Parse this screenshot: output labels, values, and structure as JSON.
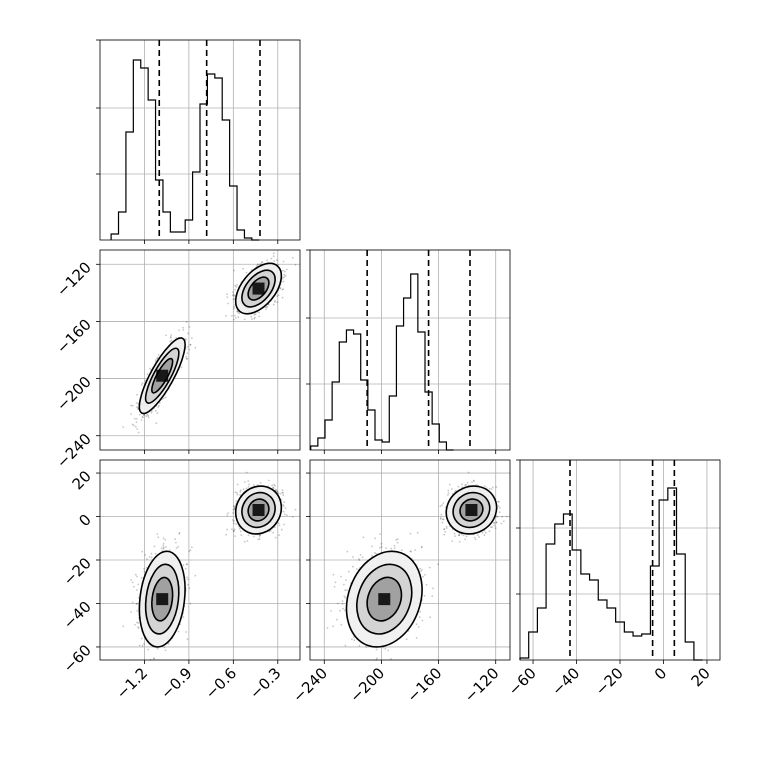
{
  "chart_data": {
    "type": "corner",
    "title": "",
    "dims": [
      {
        "name": "",
        "range": [
          -1.5,
          -0.15
        ],
        "ticks": [
          -1.2,
          -0.9,
          -0.6,
          -0.3
        ],
        "tick_labels": [
          "−1.2",
          "−0.9",
          "−0.6",
          "−0.3"
        ],
        "quantiles": [
          -1.1,
          -0.78,
          -0.42
        ],
        "hist_peak": 0.9,
        "hist": [
          {
            "x": -1.4,
            "h": 0.03
          },
          {
            "x": -1.35,
            "h": 0.14
          },
          {
            "x": -1.3,
            "h": 0.54
          },
          {
            "x": -1.25,
            "h": 0.9
          },
          {
            "x": -1.2,
            "h": 0.86
          },
          {
            "x": -1.15,
            "h": 0.7
          },
          {
            "x": -1.1,
            "h": 0.3
          },
          {
            "x": -1.05,
            "h": 0.14
          },
          {
            "x": -1.0,
            "h": 0.04
          },
          {
            "x": -0.95,
            "h": 0.04
          },
          {
            "x": -0.9,
            "h": 0.1
          },
          {
            "x": -0.85,
            "h": 0.34
          },
          {
            "x": -0.8,
            "h": 0.68
          },
          {
            "x": -0.75,
            "h": 0.83
          },
          {
            "x": -0.7,
            "h": 0.81
          },
          {
            "x": -0.65,
            "h": 0.6
          },
          {
            "x": -0.6,
            "h": 0.27
          },
          {
            "x": -0.55,
            "h": 0.05
          },
          {
            "x": -0.5,
            "h": 0.01
          },
          {
            "x": -0.45,
            "h": 0.0
          }
        ]
      },
      {
        "name": "",
        "range": [
          -250,
          -110
        ],
        "ticks": [
          -240,
          -200,
          -160,
          -120
        ],
        "tick_labels": [
          "−240",
          "−200",
          "−160",
          "−120"
        ],
        "quantiles": [
          -210,
          -167,
          -138
        ],
        "hist_peak": 0.88,
        "hist": [
          {
            "x": -247,
            "h": 0.02
          },
          {
            "x": -242,
            "h": 0.06
          },
          {
            "x": -237,
            "h": 0.15
          },
          {
            "x": -232,
            "h": 0.34
          },
          {
            "x": -227,
            "h": 0.54
          },
          {
            "x": -222,
            "h": 0.6
          },
          {
            "x": -217,
            "h": 0.58
          },
          {
            "x": -212,
            "h": 0.35
          },
          {
            "x": -207,
            "h": 0.2
          },
          {
            "x": -202,
            "h": 0.05
          },
          {
            "x": -197,
            "h": 0.04
          },
          {
            "x": -192,
            "h": 0.27
          },
          {
            "x": -187,
            "h": 0.62
          },
          {
            "x": -182,
            "h": 0.76
          },
          {
            "x": -177,
            "h": 0.88
          },
          {
            "x": -172,
            "h": 0.59
          },
          {
            "x": -167,
            "h": 0.29
          },
          {
            "x": -162,
            "h": 0.13
          },
          {
            "x": -157,
            "h": 0.04
          },
          {
            "x": -152,
            "h": 0.0
          }
        ]
      },
      {
        "name": "",
        "range": [
          -66,
          26
        ],
        "ticks": [
          -60,
          -40,
          -20,
          0,
          20
        ],
        "tick_labels": [
          "−60",
          "−40",
          "−20",
          "0",
          "20"
        ],
        "quantiles": [
          -43,
          -5,
          5
        ],
        "hist_peak": 0.86,
        "hist": [
          {
            "x": -64,
            "h": 0.01
          },
          {
            "x": -60,
            "h": 0.14
          },
          {
            "x": -56,
            "h": 0.26
          },
          {
            "x": -52,
            "h": 0.58
          },
          {
            "x": -48,
            "h": 0.68
          },
          {
            "x": -44,
            "h": 0.73
          },
          {
            "x": -40,
            "h": 0.55
          },
          {
            "x": -36,
            "h": 0.43
          },
          {
            "x": -32,
            "h": 0.4
          },
          {
            "x": -28,
            "h": 0.3
          },
          {
            "x": -24,
            "h": 0.26
          },
          {
            "x": -20,
            "h": 0.19
          },
          {
            "x": -16,
            "h": 0.14
          },
          {
            "x": -12,
            "h": 0.12
          },
          {
            "x": -8,
            "h": 0.13
          },
          {
            "x": -4,
            "h": 0.47
          },
          {
            "x": 0,
            "h": 0.8
          },
          {
            "x": 4,
            "h": 0.86
          },
          {
            "x": 8,
            "h": 0.53
          },
          {
            "x": 12,
            "h": 0.09
          },
          {
            "x": 16,
            "h": 0.0
          }
        ]
      }
    ],
    "modes": [
      {
        "center": [
          -1.08,
          -198,
          -38
        ],
        "sd": [
          0.07,
          12,
          10
        ],
        "corr": [
          0.82,
          0.2,
          0.2
        ],
        "weight": 0.5
      },
      {
        "center": [
          -0.43,
          -137,
          3
        ],
        "sd": [
          0.07,
          8,
          5
        ],
        "corr": [
          0.5,
          0.1,
          0.1
        ],
        "weight": 0.5
      }
    ],
    "contour_levels": [
      1.0,
      1.6,
      2.2
    ],
    "grid": true,
    "legend": false
  }
}
